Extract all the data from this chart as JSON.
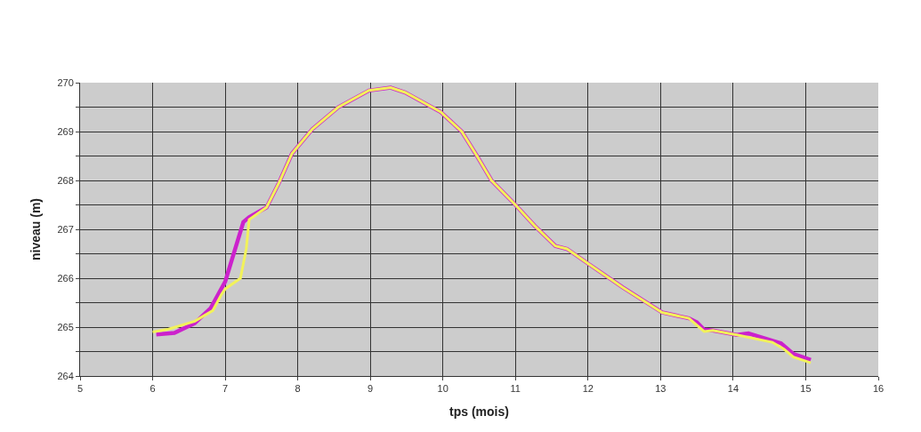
{
  "chart_data": {
    "type": "line",
    "xlabel": "tps (mois)",
    "ylabel": "niveau (m)",
    "xlim": [
      5,
      16
    ],
    "xticks": [
      5,
      6,
      7,
      8,
      9,
      10,
      11,
      12,
      13,
      14,
      15,
      16
    ],
    "ylim": [
      264,
      270
    ],
    "yticks": [
      264,
      {
        "value": 264.5,
        "label": null
      },
      265,
      {
        "value": 265.5,
        "label": null
      },
      266,
      {
        "value": 266.5,
        "label": null
      },
      267,
      {
        "value": 267.5,
        "label": null
      },
      268,
      {
        "value": 268.5,
        "label": null
      },
      269,
      {
        "value": 269.5,
        "label": null
      },
      270
    ],
    "grid": true,
    "marker": "none",
    "line_style": "solid",
    "series": [
      {
        "color": "#cc22cc",
        "x": [
          6.05,
          6.3,
          6.58,
          6.8,
          7.0,
          7.25,
          7.33,
          7.57,
          7.74,
          7.92,
          8.2,
          8.56,
          8.98,
          9.28,
          9.48,
          9.97,
          10.26,
          10.47,
          10.67,
          11.0,
          11.26,
          11.55,
          11.71,
          12.0,
          12.48,
          13.02,
          13.39,
          13.5,
          13.6,
          13.72,
          14.05,
          14.21,
          14.66,
          14.83,
          15.07
        ],
        "values": [
          264.85,
          264.88,
          265.08,
          265.39,
          265.93,
          267.15,
          267.25,
          267.45,
          267.95,
          268.55,
          269.05,
          269.5,
          269.84,
          269.9,
          269.8,
          269.4,
          269.0,
          268.5,
          268.0,
          267.5,
          267.08,
          266.66,
          266.6,
          266.3,
          265.81,
          265.3,
          265.18,
          265.1,
          264.95,
          264.93,
          264.84,
          264.87,
          264.67,
          264.45,
          264.33
        ]
      },
      {
        "color": "#f2f25a",
        "x": [
          6.0,
          6.22,
          6.58,
          6.83,
          6.95,
          7.0,
          7.21,
          7.29,
          7.33,
          7.57,
          7.74,
          7.92,
          8.2,
          8.56,
          8.98,
          9.28,
          9.48,
          9.97,
          10.26,
          10.47,
          10.67,
          11.0,
          11.26,
          11.55,
          11.71,
          12.0,
          12.48,
          13.02,
          13.39,
          13.6,
          13.72,
          14.05,
          14.54,
          14.7,
          14.83,
          15.07
        ],
        "values": [
          264.9,
          264.96,
          265.12,
          265.34,
          265.67,
          265.78,
          266.0,
          266.6,
          267.2,
          267.45,
          267.95,
          268.55,
          269.05,
          269.5,
          269.84,
          269.9,
          269.8,
          269.4,
          269.0,
          268.5,
          268.0,
          267.5,
          267.08,
          266.66,
          266.6,
          266.3,
          265.81,
          265.3,
          265.18,
          264.91,
          264.93,
          264.84,
          264.69,
          264.55,
          264.39,
          264.27
        ]
      }
    ]
  }
}
